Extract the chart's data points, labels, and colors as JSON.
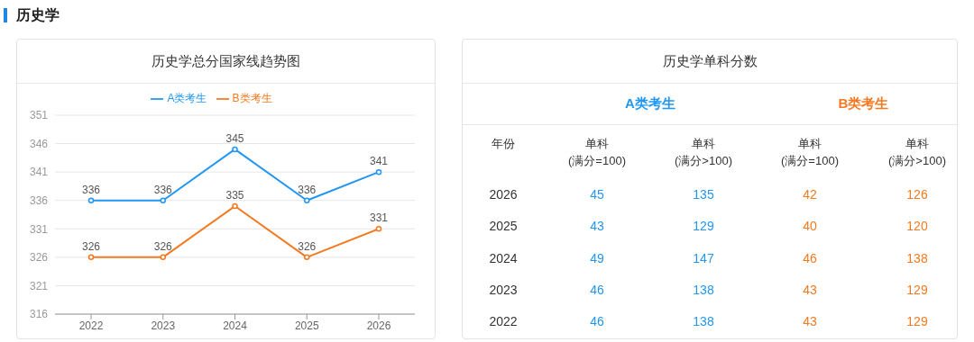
{
  "chart_data": [
    {
      "type": "line",
      "title": "历史学总分国家线趋势图",
      "annotations": [
        "历史学"
      ],
      "categories": [
        "2022",
        "2023",
        "2024",
        "2025",
        "2026"
      ],
      "series": [
        {
          "name": "A类考生",
          "color": "#2196f3",
          "values": [
            336,
            336,
            345,
            336,
            341
          ]
        },
        {
          "name": "B类考生",
          "color": "#f47920",
          "values": [
            326,
            326,
            335,
            326,
            331
          ]
        }
      ],
      "ylim": [
        316,
        351
      ],
      "yticks": [
        316,
        321,
        326,
        331,
        336,
        341,
        346,
        351
      ],
      "grid": "y",
      "legend": "top",
      "marker": "circle",
      "data_labels": true
    },
    {
      "type": "heatmap",
      "title": "历史学单科分数",
      "ylabel": "年份",
      "annotations": [
        "A类考生",
        "B类考生"
      ],
      "categories": [
        "单科\n(满分=100)",
        "单科\n(满分>100)",
        "单科\n(满分=100)",
        "单科\n(满分>100)"
      ],
      "y_categories": [
        "2026",
        "2025",
        "2024",
        "2023",
        "2022"
      ],
      "cells": [
        [
          45,
          135,
          42,
          126
        ],
        [
          43,
          129,
          40,
          120
        ],
        [
          49,
          147,
          46,
          138
        ],
        [
          46,
          138,
          43,
          129
        ],
        [
          46,
          138,
          43,
          129
        ]
      ],
      "colors": [
        "#2196f3",
        "#2196f3",
        "#f47920",
        "#f47920"
      ],
      "data_labels": true
    }
  ]
}
